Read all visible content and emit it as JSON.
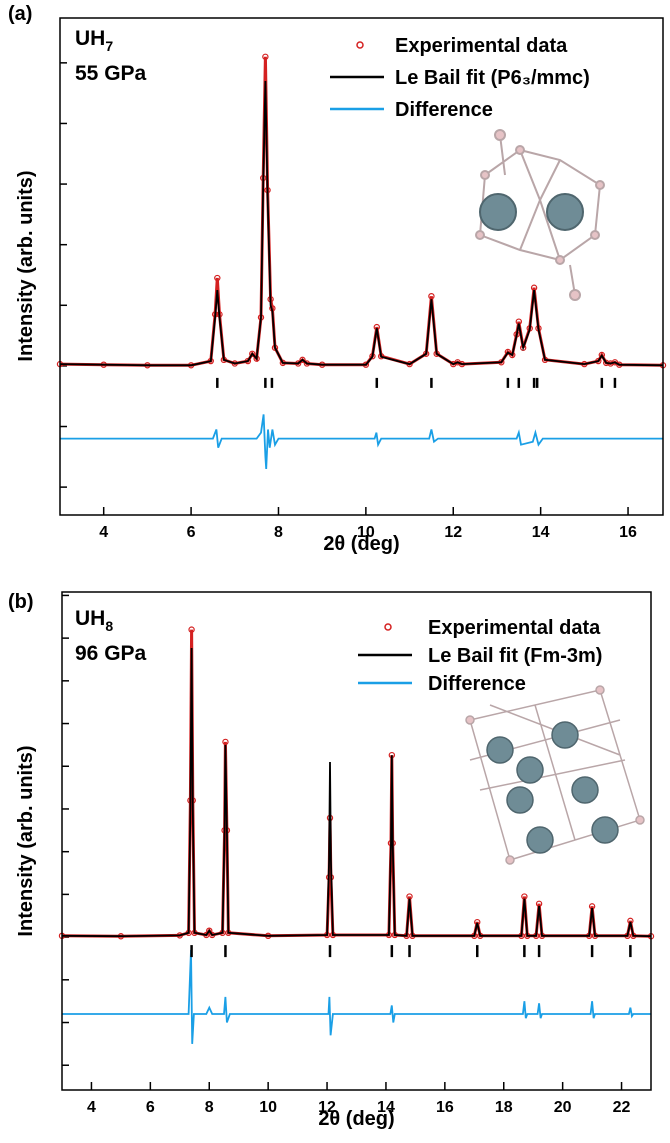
{
  "chart_data": [
    {
      "type": "line",
      "panel_label": "(a)",
      "sample": "UH",
      "sample_subscript": "7",
      "pressure": "55 GPa",
      "xlabel": "2θ (deg)",
      "ylabel": "Intensity (arb. units)",
      "xlim": [
        3,
        16.8
      ],
      "ylim": [
        -24.6,
        57.4
      ],
      "xticks": [
        4,
        6,
        8,
        10,
        12,
        14,
        16
      ],
      "yticks": [
        -20,
        -10,
        0,
        10,
        20,
        30,
        40,
        50
      ],
      "series": [
        {
          "name": "Experimental data",
          "color": "#d42020",
          "style": "markers",
          "x": [
            3,
            4,
            5,
            6,
            6.45,
            6.55,
            6.6,
            6.65,
            6.75,
            7,
            7.3,
            7.4,
            7.5,
            7.6,
            7.65,
            7.7,
            7.75,
            7.82,
            7.86,
            7.92,
            8.1,
            8.45,
            8.55,
            8.65,
            9,
            10,
            10.15,
            10.25,
            10.35,
            11,
            11.38,
            11.5,
            11.62,
            12.0,
            12.1,
            12.2,
            13.1,
            13.25,
            13.35,
            13.45,
            13.5,
            13.6,
            13.75,
            13.85,
            13.95,
            14.1,
            15,
            15.32,
            15.4,
            15.5,
            15.6,
            15.7,
            15.8,
            16.8
          ],
          "values": [
            0.3,
            0.2,
            0.1,
            0.1,
            0.8,
            8.5,
            14.5,
            8.5,
            1,
            0.4,
            0.8,
            2,
            1.2,
            8,
            31,
            51,
            29,
            11,
            9.5,
            3,
            0.5,
            0.4,
            1,
            0.4,
            0.2,
            0.2,
            1.6,
            6.4,
            1.6,
            0.3,
            2,
            11.5,
            2,
            0.3,
            0.6,
            0.3,
            0.6,
            2.3,
            1.8,
            5.2,
            7.3,
            3,
            6.2,
            12.9,
            6.2,
            1,
            0.3,
            0.8,
            1.8,
            0.5,
            0.4,
            0.6,
            0.2,
            0.1
          ]
        },
        {
          "name": "Le Bail fit (P6₃/mmc)",
          "color": "#000000",
          "style": "line",
          "x": [
            3,
            4,
            5,
            6,
            6.45,
            6.55,
            6.6,
            6.65,
            6.75,
            7,
            7.3,
            7.4,
            7.5,
            7.6,
            7.65,
            7.7,
            7.75,
            7.82,
            7.86,
            7.92,
            8.1,
            8.45,
            8.55,
            8.65,
            9,
            10,
            10.15,
            10.25,
            10.35,
            11,
            11.38,
            11.5,
            11.62,
            12.0,
            12.1,
            12.2,
            13.1,
            13.25,
            13.35,
            13.45,
            13.5,
            13.6,
            13.75,
            13.85,
            13.95,
            14.1,
            15,
            15.32,
            15.4,
            15.5,
            15.6,
            15.7,
            15.8,
            16.8
          ],
          "values": [
            0.3,
            0.2,
            0.1,
            0.1,
            0.8,
            8,
            12.5,
            8,
            1,
            0.4,
            0.8,
            2,
            1.2,
            8,
            30,
            47,
            28,
            10,
            9,
            3,
            0.5,
            0.4,
            1,
            0.4,
            0.2,
            0.2,
            1.5,
            6.2,
            1.5,
            0.3,
            2,
            11,
            2,
            0.3,
            0.6,
            0.3,
            0.6,
            2.2,
            1.8,
            5,
            7,
            3,
            6,
            12.5,
            6,
            1,
            0.3,
            0.8,
            1.7,
            0.5,
            0.4,
            0.6,
            0.2,
            0.1
          ]
        },
        {
          "name": "Difference",
          "color": "#1a9fe6",
          "style": "line",
          "x": [
            3,
            6.5,
            6.58,
            6.62,
            6.7,
            7.5,
            7.6,
            7.66,
            7.7,
            7.72,
            7.76,
            7.8,
            7.86,
            7.92,
            8.0,
            10.2,
            10.24,
            10.28,
            10.35,
            11.45,
            11.5,
            11.56,
            11.65,
            13.45,
            13.5,
            13.55,
            13.82,
            13.88,
            13.95,
            14.05,
            16.8
          ],
          "values": [
            -12,
            -12,
            -10.5,
            -13.5,
            -12,
            -12,
            -11,
            -8,
            -15,
            -17,
            -10.5,
            -13.5,
            -10.5,
            -13,
            -12,
            -12,
            -11,
            -13,
            -12,
            -12,
            -10.5,
            -12.5,
            -12,
            -12,
            -11,
            -13,
            -12.5,
            -11,
            -13,
            -12,
            -12
          ]
        }
      ],
      "bragg_ticks": [
        6.6,
        7.7,
        7.85,
        10.25,
        11.5,
        13.25,
        13.5,
        13.85,
        13.92,
        15.4,
        15.7
      ]
    },
    {
      "type": "line",
      "panel_label": "(b)",
      "sample": "UH",
      "sample_subscript": "8",
      "pressure": "96 GPa",
      "xlabel": "2θ (deg)",
      "ylabel": "Intensity (arb. units)",
      "xlim": [
        3,
        23
      ],
      "ylim": [
        -35.8,
        80.8
      ],
      "xticks": [
        4,
        6,
        8,
        10,
        12,
        14,
        16,
        18,
        20,
        22
      ],
      "yticks": [
        -30,
        -20,
        -10,
        0,
        10,
        20,
        30,
        40,
        50,
        60,
        70,
        80
      ],
      "series": [
        {
          "name": "Experimental data",
          "color": "#d42020",
          "style": "markers",
          "x": [
            3,
            5,
            7,
            7.3,
            7.36,
            7.4,
            7.44,
            7.5,
            7.9,
            8.0,
            8.1,
            8.45,
            8.52,
            8.55,
            8.6,
            8.65,
            10,
            12.0,
            12.07,
            12.1,
            12.13,
            12.2,
            14.1,
            14.17,
            14.2,
            14.23,
            14.3,
            14.7,
            14.8,
            14.9,
            17.0,
            17.1,
            17.2,
            18.6,
            18.7,
            18.8,
            19.1,
            19.2,
            19.3,
            20.9,
            21.0,
            21.1,
            22.2,
            22.3,
            22.4,
            23
          ],
          "values": [
            0.3,
            0.2,
            0.4,
            1,
            32,
            72,
            32,
            1,
            0.5,
            1.5,
            0.5,
            1,
            25,
            45.7,
            25,
            1,
            0.3,
            0.5,
            14,
            27.9,
            14,
            0.5,
            0.5,
            22,
            42.6,
            22,
            0.5,
            0.3,
            9.5,
            0.3,
            0.3,
            3.5,
            0.3,
            0.3,
            9.5,
            0.3,
            0.3,
            7.8,
            0.3,
            0.3,
            7.2,
            0.3,
            0.3,
            3.8,
            0.3,
            0.2
          ]
        },
        {
          "name": "Le Bail fit (Fm-3m)",
          "color": "#000000",
          "style": "line",
          "x": [
            3,
            5,
            7,
            7.3,
            7.36,
            7.4,
            7.44,
            7.5,
            7.9,
            8.0,
            8.1,
            8.45,
            8.52,
            8.55,
            8.6,
            8.65,
            10,
            12.0,
            12.07,
            12.1,
            12.13,
            12.2,
            14.1,
            14.17,
            14.2,
            14.23,
            14.3,
            14.7,
            14.8,
            14.9,
            17.0,
            17.1,
            17.2,
            18.6,
            18.7,
            18.8,
            19.1,
            19.2,
            19.3,
            20.9,
            21.0,
            21.1,
            22.2,
            22.3,
            22.4,
            23
          ],
          "values": [
            0.3,
            0.2,
            0.4,
            1,
            30,
            67.7,
            30,
            1,
            0.5,
            1.5,
            0.5,
            1,
            25,
            45,
            25,
            1,
            0.3,
            0.5,
            18,
            41,
            18,
            0.5,
            0.5,
            22,
            42.6,
            22,
            0.5,
            0.3,
            9,
            0.3,
            0.3,
            3.3,
            0.3,
            0.3,
            9,
            0.3,
            0.3,
            7.3,
            0.3,
            0.3,
            6.8,
            0.3,
            0.3,
            3.5,
            0.3,
            0.2
          ]
        },
        {
          "name": "Difference",
          "color": "#1a9fe6",
          "style": "line",
          "x": [
            3,
            7.3,
            7.38,
            7.42,
            7.48,
            7.9,
            8.0,
            8.1,
            8.5,
            8.55,
            8.6,
            8.7,
            12.05,
            12.08,
            12.12,
            12.2,
            14.15,
            14.2,
            14.25,
            14.3,
            18.65,
            18.7,
            18.75,
            18.8,
            19.15,
            19.2,
            19.25,
            19.3,
            20.95,
            21.0,
            21.05,
            21.1,
            22.25,
            22.3,
            22.35,
            22.4,
            23
          ],
          "values": [
            -18,
            -18,
            -3,
            -25,
            -18,
            -18,
            -16.5,
            -18,
            -18,
            -14,
            -20,
            -18,
            -18,
            -14,
            -23,
            -18,
            -18,
            -16,
            -20,
            -18,
            -18,
            -15,
            -19,
            -18,
            -18,
            -15.5,
            -19,
            -18,
            -18,
            -15,
            -19,
            -18,
            -18,
            -16.5,
            -18.5,
            -18,
            -18
          ]
        }
      ],
      "bragg_ticks": [
        7.4,
        8.55,
        12.1,
        14.2,
        14.8,
        17.1,
        18.7,
        19.2,
        21.0,
        22.3
      ]
    }
  ]
}
